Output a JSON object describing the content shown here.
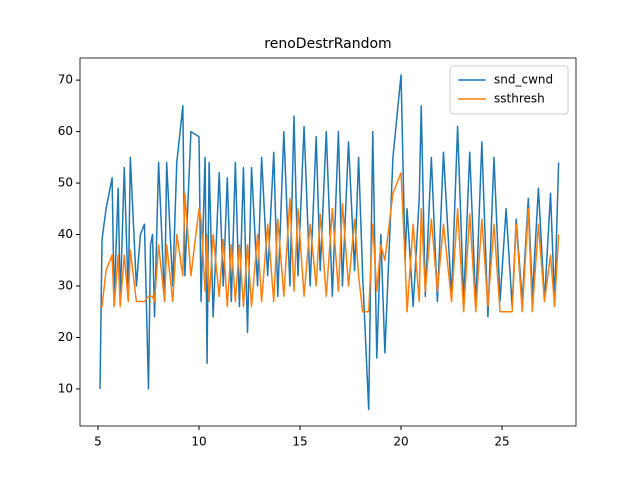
{
  "chart_data": {
    "type": "line",
    "title": "renoDestrRandom",
    "x": [
      5.1,
      5.2,
      5.4,
      5.7,
      5.8,
      6.0,
      6.1,
      6.3,
      6.5,
      6.6,
      6.9,
      7.1,
      7.3,
      7.5,
      7.6,
      7.7,
      7.8,
      8.0,
      8.3,
      8.4,
      8.7,
      8.9,
      9.2,
      9.3,
      9.6,
      10.0,
      10.1,
      10.3,
      10.4,
      10.5,
      10.7,
      11.0,
      11.2,
      11.4,
      11.6,
      11.8,
      12.0,
      12.2,
      12.4,
      12.6,
      12.9,
      13.1,
      13.4,
      13.7,
      13.9,
      14.2,
      14.5,
      14.7,
      14.9,
      15.2,
      15.5,
      15.8,
      16.0,
      16.3,
      16.6,
      16.9,
      17.1,
      17.4,
      17.7,
      17.9,
      18.1,
      18.4,
      18.6,
      18.8,
      19.0,
      19.2,
      19.6,
      20.0,
      20.2,
      20.3,
      20.6,
      20.9,
      21.0,
      21.2,
      21.5,
      21.8,
      22.1,
      22.5,
      22.8,
      23.1,
      23.4,
      23.7,
      24.0,
      24.3,
      24.6,
      24.9,
      25.2,
      25.5,
      25.7,
      26.0,
      26.3,
      26.5,
      26.8,
      27.1,
      27.4,
      27.6,
      27.8
    ],
    "series": [
      {
        "name": "snd_cwnd",
        "color": "#1f77b4",
        "values": [
          10,
          39,
          45,
          51,
          27,
          49,
          27,
          53,
          28,
          55,
          30,
          40,
          42,
          10,
          38,
          40,
          24,
          54,
          27,
          54,
          30,
          54,
          65,
          32,
          60,
          59,
          27,
          55,
          15,
          54,
          24,
          52,
          30,
          51,
          27,
          54,
          26,
          53,
          21,
          53,
          30,
          55,
          32,
          56,
          28,
          60,
          30,
          63,
          32,
          61,
          30,
          59,
          33,
          60,
          28,
          60,
          30,
          58,
          33,
          55,
          32,
          6,
          60,
          16,
          40,
          17,
          55,
          71,
          35,
          45,
          26,
          47,
          65,
          28,
          55,
          27,
          56,
          28,
          61,
          27,
          56,
          26,
          58,
          24,
          55,
          27,
          45,
          26,
          43,
          27,
          47,
          28,
          49,
          27,
          48,
          27,
          54
        ]
      },
      {
        "name": "ssthresh",
        "color": "#ff7f0e",
        "values": [
          26,
          26,
          33,
          36,
          26,
          36,
          26,
          36,
          27,
          37,
          27,
          27,
          27,
          28,
          28,
          28,
          27,
          38,
          27,
          38,
          27,
          40,
          32,
          48,
          32,
          45,
          43,
          29,
          40,
          27,
          40,
          28,
          39,
          26,
          38,
          27,
          38,
          26,
          38,
          26,
          40,
          27,
          42,
          27,
          43,
          28,
          47,
          29,
          45,
          28,
          42,
          30,
          44,
          28,
          45,
          29,
          46,
          30,
          43,
          32,
          25,
          25,
          42,
          29,
          38,
          35,
          48,
          52,
          35,
          25,
          42,
          27,
          45,
          29,
          43,
          29,
          42,
          27,
          45,
          25,
          44,
          25,
          43,
          26,
          42,
          25,
          25,
          25,
          42,
          25,
          45,
          25,
          42,
          27,
          36,
          26,
          40
        ]
      }
    ],
    "xlim": [
      4.11,
      28.66
    ],
    "ylim": [
      2.8,
      74.3
    ],
    "xticks": [
      5,
      10,
      15,
      20,
      25
    ],
    "yticks": [
      10,
      20,
      30,
      40,
      50,
      60,
      70
    ],
    "grid": false,
    "legend": "upper right"
  }
}
